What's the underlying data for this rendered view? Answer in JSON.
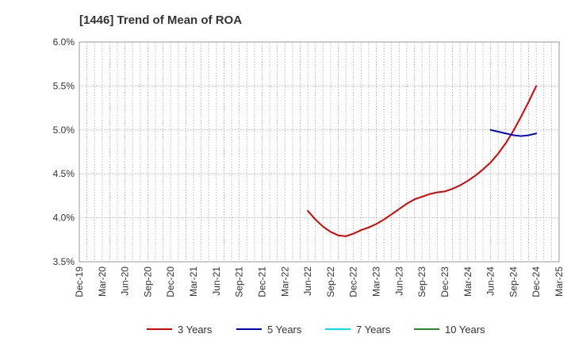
{
  "chart_data": {
    "type": "line",
    "title": "[1446]  Trend of Mean of ROA",
    "xlabel": "",
    "ylabel": "",
    "ylim": [
      3.5,
      6.0
    ],
    "y_ticks": [
      "3.5%",
      "4.0%",
      "4.5%",
      "5.0%",
      "5.5%",
      "6.0%"
    ],
    "x_ticks": [
      "Dec-19",
      "Mar-20",
      "Jun-20",
      "Sep-20",
      "Dec-20",
      "Mar-21",
      "Jun-21",
      "Sep-21",
      "Dec-21",
      "Mar-22",
      "Jun-22",
      "Sep-22",
      "Dec-22",
      "Mar-23",
      "Jun-23",
      "Sep-23",
      "Dec-23",
      "Mar-24",
      "Jun-24",
      "Sep-24",
      "Dec-24",
      "Mar-25"
    ],
    "grid": true,
    "legend_position": "bottom",
    "series": [
      {
        "name": "3 Years",
        "color": "#dd0000",
        "points": [
          [
            "Jun-22",
            4.08
          ],
          [
            "Jul-22",
            3.98
          ],
          [
            "Aug-22",
            3.9
          ],
          [
            "Sep-22",
            3.84
          ],
          [
            "Oct-22",
            3.8
          ],
          [
            "Nov-22",
            3.79
          ],
          [
            "Dec-22",
            3.82
          ],
          [
            "Jan-23",
            3.86
          ],
          [
            "Feb-23",
            3.89
          ],
          [
            "Mar-23",
            3.93
          ],
          [
            "Apr-23",
            3.98
          ],
          [
            "May-23",
            4.04
          ],
          [
            "Jun-23",
            4.1
          ],
          [
            "Jul-23",
            4.16
          ],
          [
            "Aug-23",
            4.21
          ],
          [
            "Sep-23",
            4.24
          ],
          [
            "Oct-23",
            4.27
          ],
          [
            "Nov-23",
            4.29
          ],
          [
            "Dec-23",
            4.3
          ],
          [
            "Jan-24",
            4.33
          ],
          [
            "Feb-24",
            4.37
          ],
          [
            "Mar-24",
            4.42
          ],
          [
            "Apr-24",
            4.48
          ],
          [
            "May-24",
            4.55
          ],
          [
            "Jun-24",
            4.63
          ],
          [
            "Jul-24",
            4.73
          ],
          [
            "Aug-24",
            4.85
          ],
          [
            "Sep-24",
            4.99
          ],
          [
            "Oct-24",
            5.15
          ],
          [
            "Nov-24",
            5.32
          ],
          [
            "Dec-24",
            5.5
          ]
        ]
      },
      {
        "name": "5 Years",
        "color": "#0000cc",
        "points": [
          [
            "Jun-24",
            5.0
          ],
          [
            "Jul-24",
            4.98
          ],
          [
            "Aug-24",
            4.96
          ],
          [
            "Sep-24",
            4.94
          ],
          [
            "Oct-24",
            4.93
          ],
          [
            "Nov-24",
            4.94
          ],
          [
            "Dec-24",
            4.96
          ]
        ]
      },
      {
        "name": "7 Years",
        "color": "#00e5ee",
        "points": []
      },
      {
        "name": "10 Years",
        "color": "#228b22",
        "points": []
      }
    ]
  }
}
